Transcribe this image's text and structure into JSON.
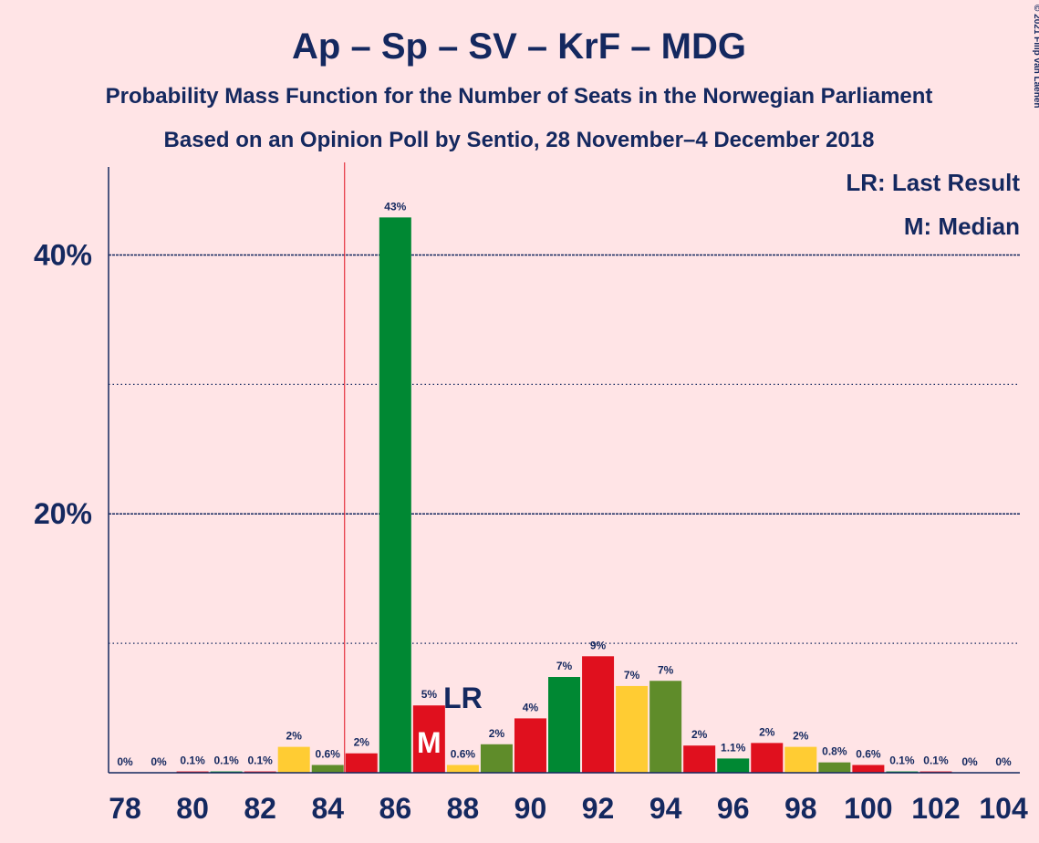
{
  "chart_data": {
    "type": "bar",
    "title": "Ap – Sp – SV – KrF – MDG",
    "subtitle": "Probability Mass Function for the Number of Seats in the Norwegian Parliament",
    "subtitle2": "Based on an Opinion Poll by Sentio, 28 November–4 December 2018",
    "copyright": "© 2021 Filip van Laenen",
    "legend": [
      "LR: Last Result",
      "M: Median"
    ],
    "categories": [
      78,
      null,
      80,
      null,
      82,
      null,
      84,
      null,
      86,
      null,
      88,
      null,
      90,
      null,
      92,
      null,
      94,
      null,
      96,
      null,
      98,
      null,
      100,
      null,
      102,
      null,
      104
    ],
    "values": [
      0,
      0,
      0.1,
      0.1,
      0.1,
      2.0,
      0.6,
      1.5,
      42.9,
      5.2,
      0.6,
      2.2,
      4.2,
      7.4,
      9.0,
      6.7,
      7.1,
      2.1,
      1.1,
      2.3,
      2.0,
      0.8,
      0.6,
      0.1,
      0.1,
      0,
      0
    ],
    "value_labels": [
      "0%",
      "0%",
      "0.1%",
      "0.1%",
      "0.1%",
      "2%",
      "0.6%",
      "2%",
      "43%",
      "5%",
      "0.6%",
      "2%",
      "4%",
      "7%",
      "9%",
      "7%",
      "7%",
      "2%",
      "1.1%",
      "2%",
      "2%",
      "0.8%",
      "0.6%",
      "0.1%",
      "0.1%",
      "0%",
      "0%"
    ],
    "colors": [
      "#ffcc33",
      "#5f8c2a",
      "#e0101e",
      "#008833",
      "#e0101e",
      "#ffcc33",
      "#5f8c2a",
      "#e0101e",
      "#008833",
      "#e0101e",
      "#ffcc33",
      "#5f8c2a",
      "#e0101e",
      "#008833",
      "#e0101e",
      "#ffcc33",
      "#5f8c2a",
      "#e0101e",
      "#008833",
      "#e0101e",
      "#ffcc33",
      "#5f8c2a",
      "#e0101e",
      "#008833",
      "#e0101e",
      "#ffcc33",
      "#5f8c2a"
    ],
    "ylim": [
      0,
      46.8
    ],
    "yticks": [
      {
        "value": 20,
        "label": "20%"
      },
      {
        "value": 40,
        "label": "40%"
      }
    ],
    "minor_yticks": [
      10,
      30
    ],
    "majority_line": 84.5,
    "median": 87,
    "median_label": "M",
    "last_result": 88,
    "last_result_label": "LR"
  }
}
